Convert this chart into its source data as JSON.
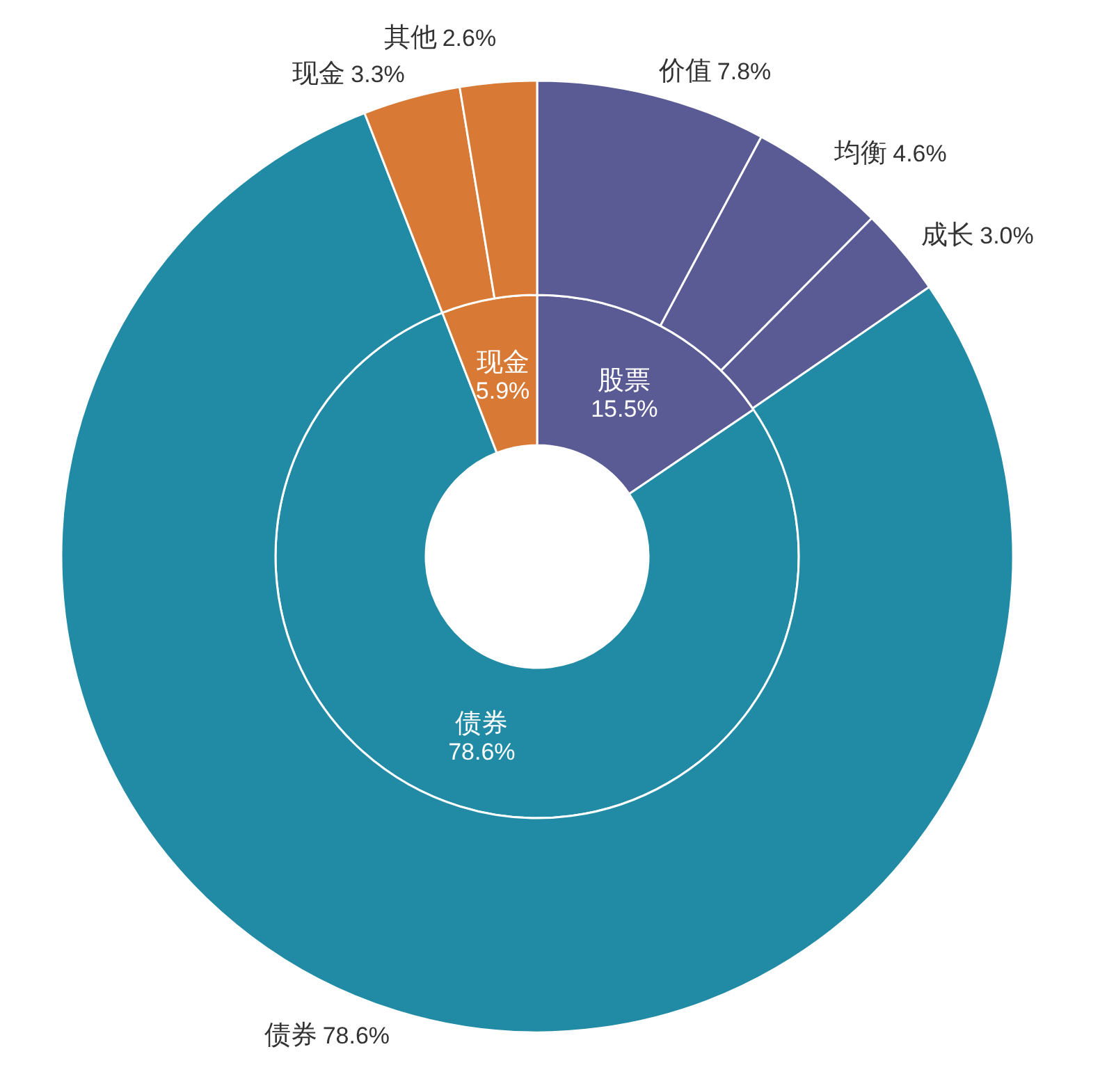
{
  "chart_data": [
    {
      "type": "donut",
      "categories": [
        "股票",
        "债券",
        "现金"
      ],
      "values": [
        15.5,
        78.6,
        5.9
      ],
      "colors": [
        "#5a5b94",
        "#218ba5",
        "#d87a36"
      ],
      "value_labels": [
        "15.5%",
        "78.6%",
        "5.9%"
      ]
    },
    {
      "type": "donut",
      "categories": [
        "价值",
        "均衡",
        "成长",
        "债券",
        "现金",
        "其他"
      ],
      "values": [
        7.8,
        4.6,
        3.0,
        78.6,
        3.3,
        2.6
      ],
      "colors": [
        "#5a5b94",
        "#5a5b94",
        "#5a5b94",
        "#218ba5",
        "#d87a36",
        "#d87a36"
      ],
      "value_labels": [
        "7.8%",
        "4.6%",
        "3.0%",
        "78.6%",
        "3.3%",
        "2.6%"
      ]
    }
  ]
}
